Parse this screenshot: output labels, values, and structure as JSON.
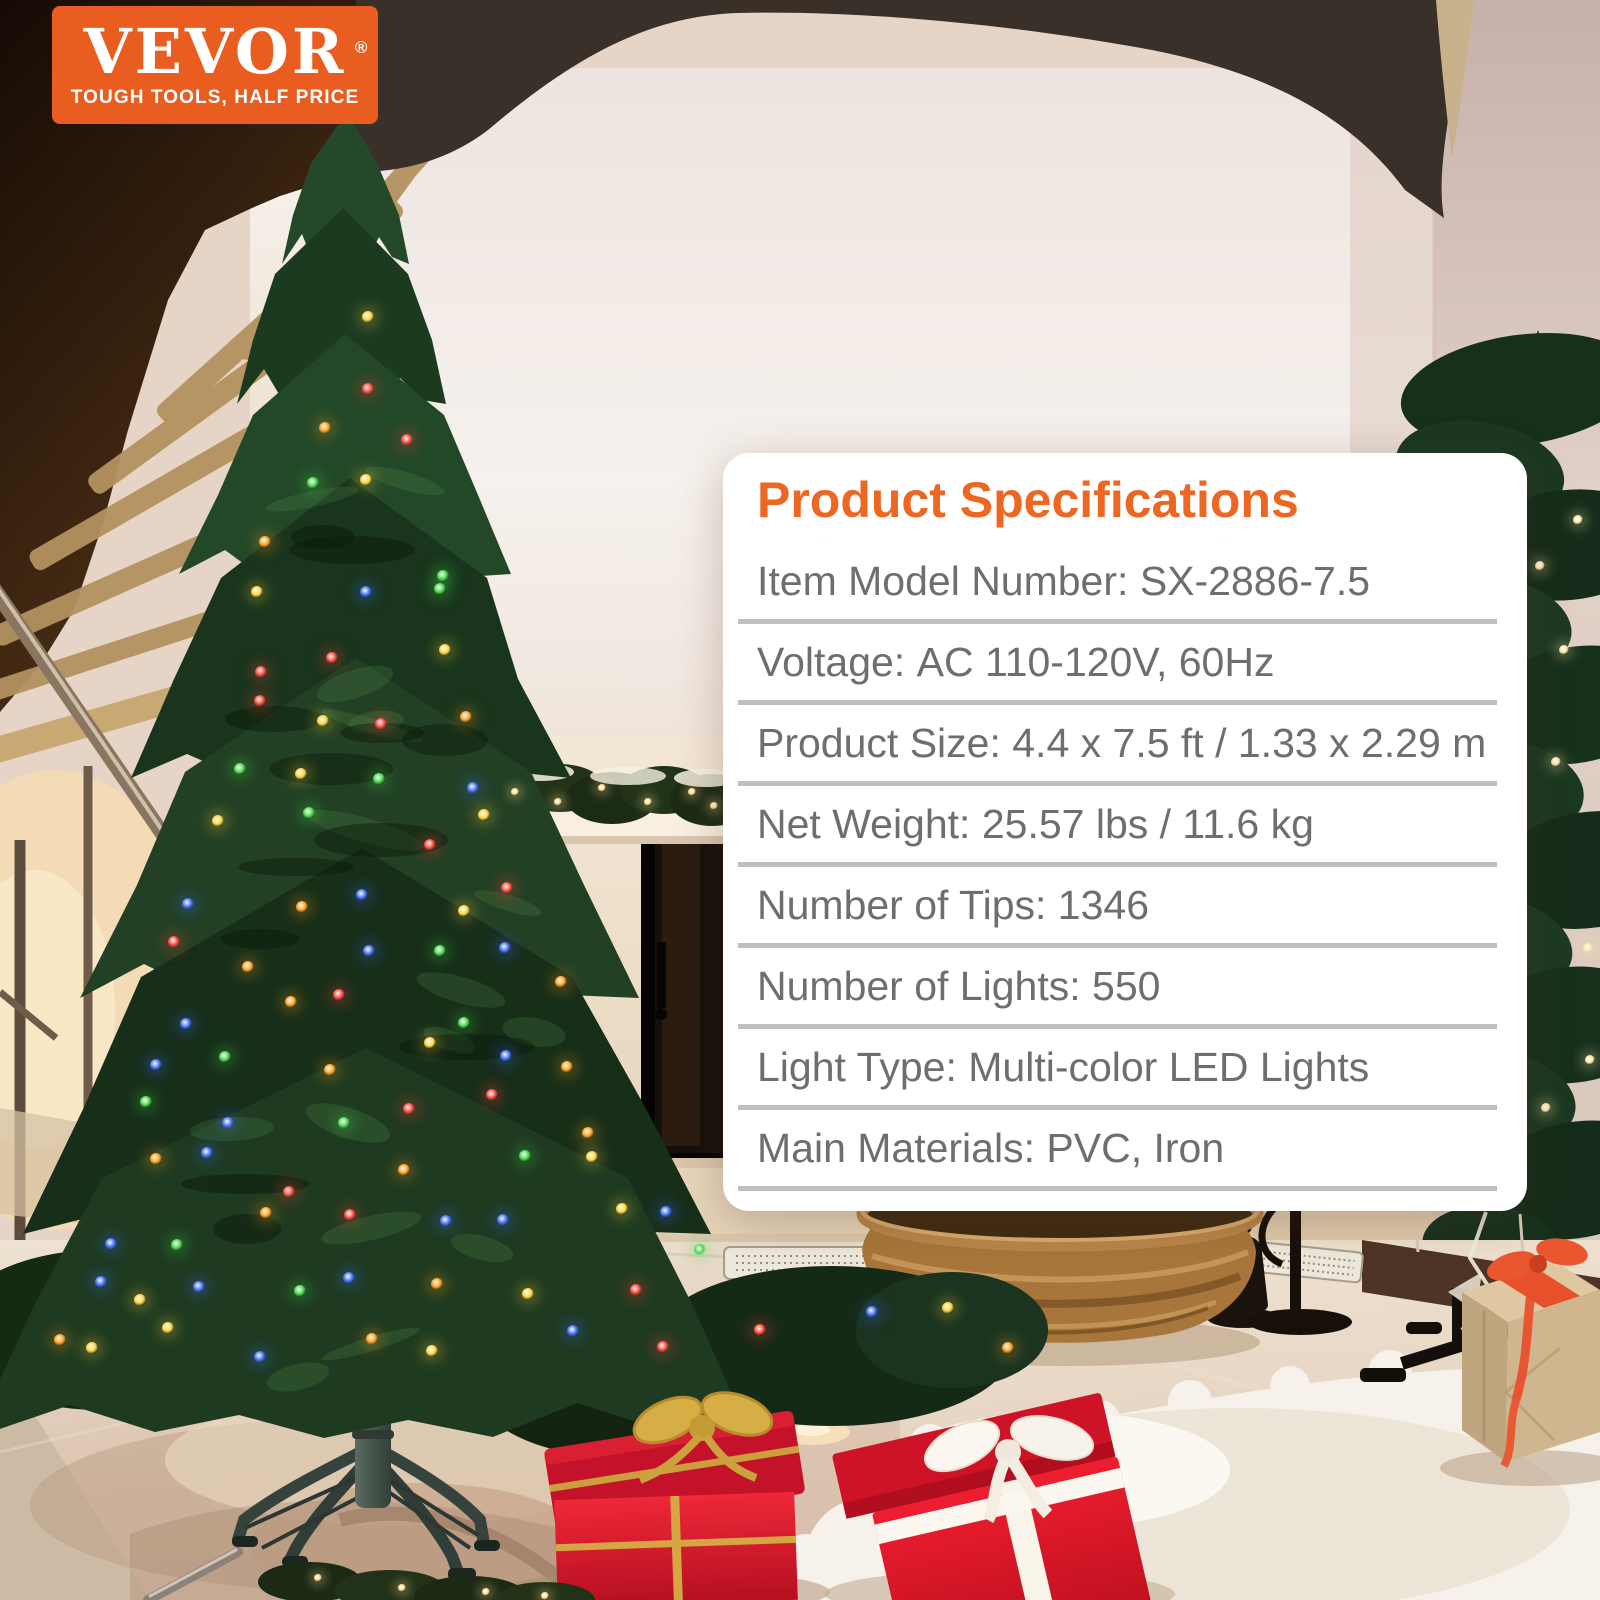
{
  "brand": {
    "logo_text": "VEVOR",
    "registered_mark": "®",
    "tagline": "TOUGH TOOLS, HALF PRICE"
  },
  "panel": {
    "title": "Product Specifications",
    "specs": [
      {
        "label": "Item Model Number:",
        "value": "SX-2886-7.5"
      },
      {
        "label": "Voltage:",
        "value": "AC 110-120V, 60Hz"
      },
      {
        "label": "Product Size:",
        "value": "4.4 x 7.5 ft / 1.33 x 2.29 m"
      },
      {
        "label": "Net Weight:",
        "value": "25.57 lbs / 11.6 kg"
      },
      {
        "label": "Number of Tips:",
        "value": "1346"
      },
      {
        "label": "Number of Lights:",
        "value": "550"
      },
      {
        "label": "Light Type:",
        "value": "Multi-color LED Lights"
      },
      {
        "label": "Main Materials:",
        "value": "PVC, Iron"
      }
    ]
  },
  "colors": {
    "brand_orange": "#E95D20",
    "heading_orange": "#ED6622",
    "spec_text_gray": "#6E6E6E",
    "divider_gray": "#BFBFBF",
    "panel_white": "#FFFFFF",
    "led_colors": [
      "#3f6cff",
      "#ffd23e",
      "#ff9e1f",
      "#ff4136",
      "#46d84a"
    ],
    "warm_light": "#ffe6a8"
  }
}
